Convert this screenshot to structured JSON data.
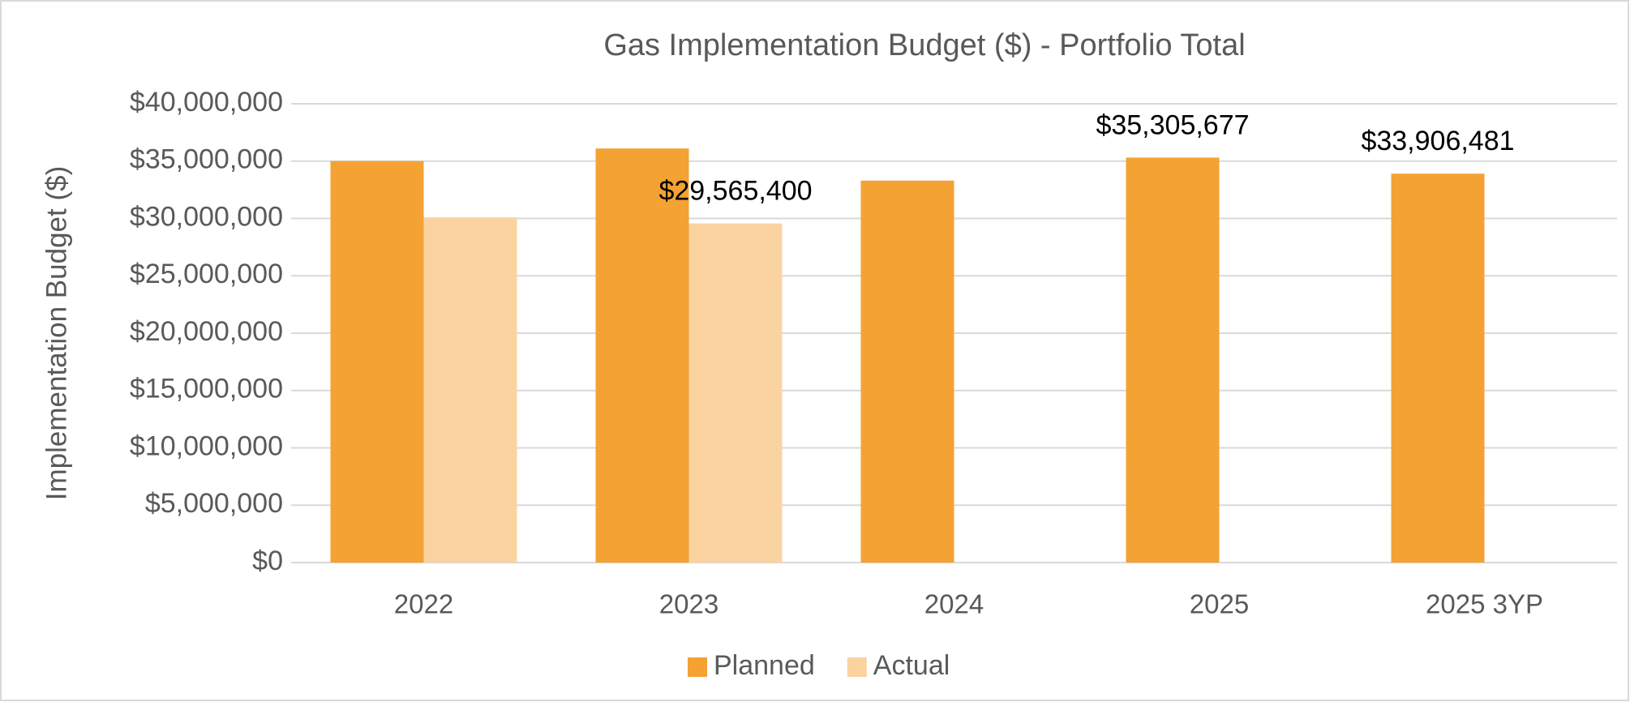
{
  "chart_data": {
    "type": "bar",
    "title": "Gas Implementation Budget ($) - Portfolio Total",
    "y_label": "Implementation Budget ($)",
    "categories": [
      "2022",
      "2023",
      "2024",
      "2025",
      "2025 3YP"
    ],
    "series": [
      {
        "name": "Planned",
        "color": "#f4a233",
        "values": [
          35000000,
          36100000,
          33300000,
          35305677,
          33906481
        ],
        "value_labels": [
          null,
          null,
          null,
          "$35,305,677",
          "$33,906,481"
        ]
      },
      {
        "name": "Actual",
        "color": "#fad3a0",
        "values": [
          30100000,
          29565400,
          null,
          null,
          null
        ],
        "value_labels": [
          null,
          "$29,565,400",
          null,
          null,
          null
        ]
      }
    ],
    "ylim": [
      0,
      40000000
    ],
    "yticks": [
      {
        "value": 0,
        "label": "$0"
      },
      {
        "value": 5000000,
        "label": "$5,000,000"
      },
      {
        "value": 10000000,
        "label": "$10,000,000"
      },
      {
        "value": 15000000,
        "label": "$15,000,000"
      },
      {
        "value": 20000000,
        "label": "$20,000,000"
      },
      {
        "value": 25000000,
        "label": "$25,000,000"
      },
      {
        "value": 30000000,
        "label": "$30,000,000"
      },
      {
        "value": 35000000,
        "label": "$35,000,000"
      },
      {
        "value": 40000000,
        "label": "$40,000,000"
      }
    ],
    "grid": true,
    "legend": "bottom"
  }
}
